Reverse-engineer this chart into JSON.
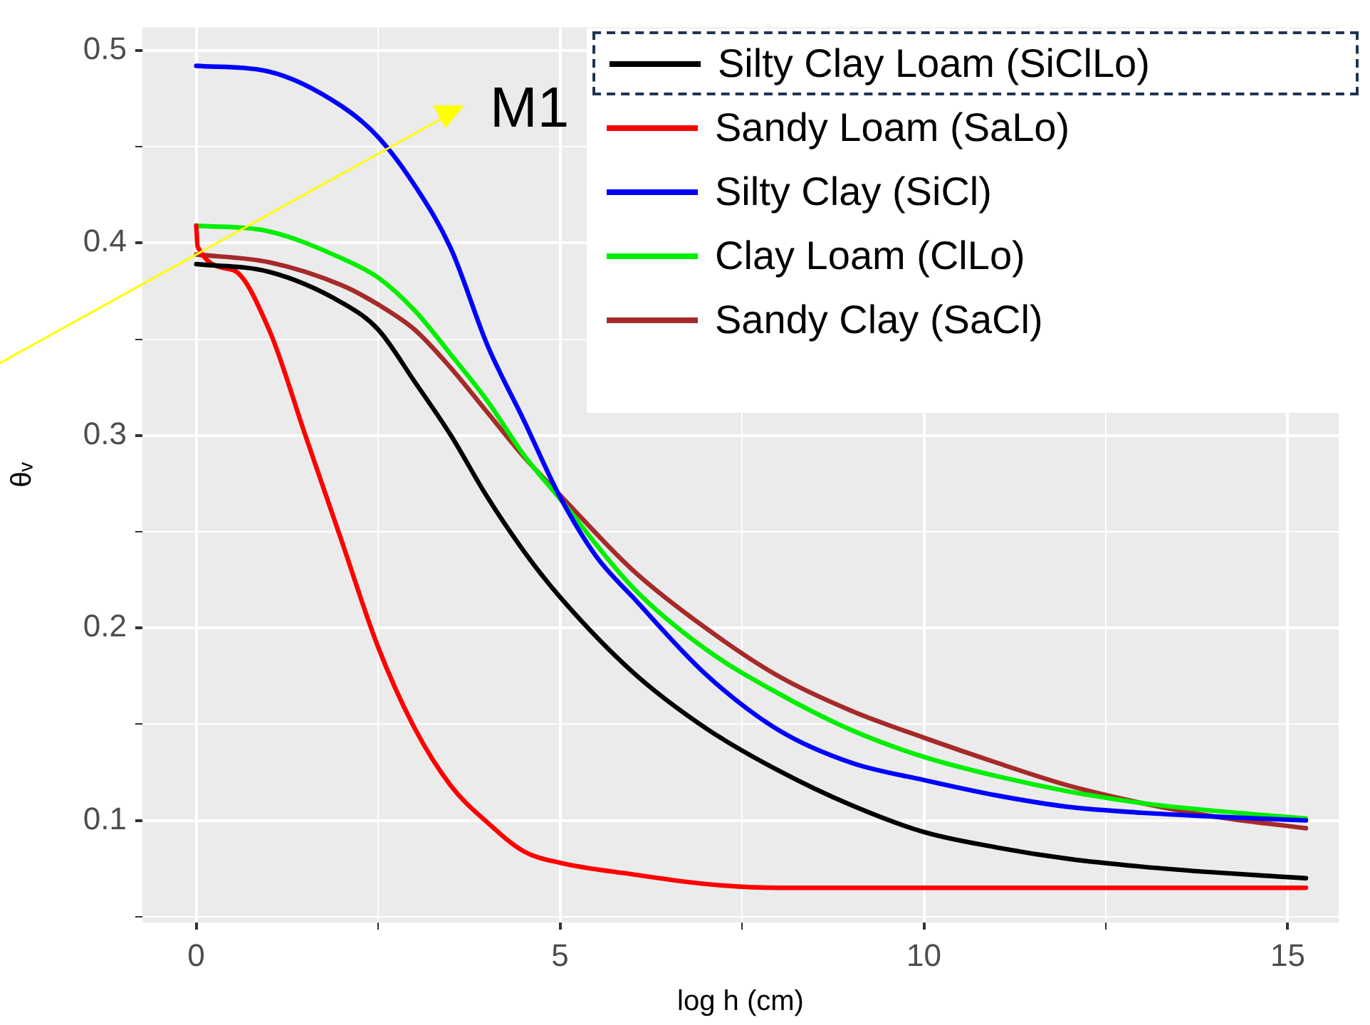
{
  "chart_data": {
    "type": "line",
    "xlabel": "log h (cm)",
    "ylabel": "θᵥ",
    "xlim": [
      -0.74,
      15.7
    ],
    "ylim": [
      0.047,
      0.512
    ],
    "xticks": [
      0,
      {
        "value": 2.5,
        "label": null
      },
      5,
      {
        "value": 7.5,
        "label": null
      },
      10,
      {
        "value": 12.5,
        "label": null
      },
      15
    ],
    "yticks": [
      {
        "value": 0.05,
        "label": null
      },
      0.1,
      {
        "value": 0.15,
        "label": null
      },
      0.2,
      {
        "value": 0.25,
        "label": null
      },
      0.3,
      {
        "value": 0.35,
        "label": null
      },
      0.4,
      {
        "value": 0.45,
        "label": null
      },
      0.5
    ],
    "grid": true,
    "legend": "top right",
    "marker": "none",
    "line_style": "solid",
    "annotations": [
      "M1"
    ],
    "series": [
      {
        "name": "Silty Clay Loam (SiClLo)",
        "color": "#000000",
        "x": [
          0,
          1,
          2,
          2.5,
          3,
          3.5,
          4,
          4.5,
          5,
          6,
          7,
          8,
          9,
          10,
          11,
          12,
          13,
          14,
          15.25
        ],
        "values": [
          0.389,
          0.385,
          0.369,
          0.355,
          0.328,
          0.3,
          0.268,
          0.24,
          0.216,
          0.177,
          0.148,
          0.126,
          0.108,
          0.094,
          0.086,
          0.08,
          0.076,
          0.073,
          0.07
        ]
      },
      {
        "name": "Sandy Loam (SaLo)",
        "color": "#ff0000",
        "x": [
          0,
          0.02,
          0.5,
          1,
          1.5,
          2,
          2.5,
          3,
          3.5,
          4,
          4.5,
          5,
          6,
          7,
          8,
          10,
          15.25
        ],
        "values": [
          0.409,
          0.398,
          0.386,
          0.355,
          0.3,
          0.245,
          0.19,
          0.148,
          0.118,
          0.099,
          0.084,
          0.078,
          0.072,
          0.067,
          0.065,
          0.065,
          0.065
        ]
      },
      {
        "name": "Silty Clay (SiCl)",
        "color": "#0000ff",
        "x": [
          0,
          1,
          2,
          2.5,
          3,
          3.5,
          4,
          4.5,
          5,
          5.5,
          6,
          7,
          8,
          9,
          10,
          11,
          12,
          13,
          14,
          15.25
        ],
        "values": [
          0.492,
          0.489,
          0.471,
          0.455,
          0.43,
          0.397,
          0.347,
          0.308,
          0.268,
          0.237,
          0.216,
          0.176,
          0.147,
          0.13,
          0.121,
          0.113,
          0.107,
          0.104,
          0.102,
          0.1
        ]
      },
      {
        "name": "Clay Loam (ClLo)",
        "color": "#00ee00",
        "x": [
          0,
          1,
          2,
          2.5,
          3,
          3.5,
          4,
          4.5,
          5,
          6,
          7,
          8,
          9,
          10,
          11,
          12,
          13,
          14,
          15.25
        ],
        "values": [
          0.409,
          0.406,
          0.392,
          0.382,
          0.365,
          0.342,
          0.318,
          0.29,
          0.267,
          0.221,
          0.189,
          0.166,
          0.147,
          0.133,
          0.123,
          0.115,
          0.109,
          0.105,
          0.101
        ]
      },
      {
        "name": "Sandy Clay (SaCl)",
        "color": "#a52a2a",
        "x": [
          0,
          1,
          2,
          2.5,
          3,
          3.5,
          4,
          4.5,
          5,
          6,
          7,
          8,
          9,
          10,
          11,
          12,
          13,
          14,
          15.25
        ],
        "values": [
          0.394,
          0.39,
          0.378,
          0.368,
          0.355,
          0.335,
          0.312,
          0.289,
          0.269,
          0.23,
          0.2,
          0.175,
          0.157,
          0.143,
          0.13,
          0.118,
          0.109,
          0.102,
          0.096
        ]
      }
    ]
  }
}
